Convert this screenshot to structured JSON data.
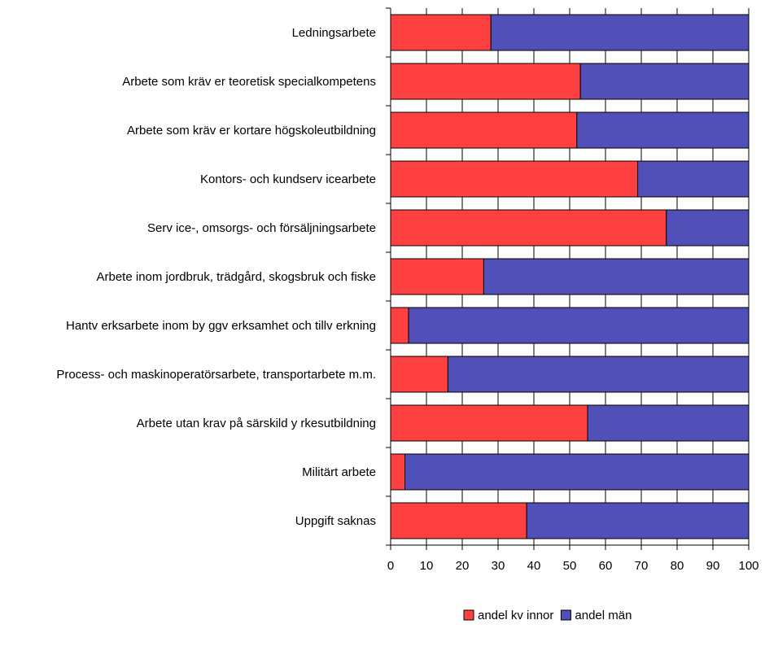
{
  "chart_data": {
    "type": "bar",
    "orientation": "horizontal",
    "stacked": true,
    "categories": [
      "Ledningsarbete",
      "Arbete som kräv er teoretisk specialkompetens",
      "Arbete som kräv er kortare högskoleutbildning",
      "Kontors- och kundserv icearbete",
      "Serv ice-, omsorgs- och försäljningsarbete",
      "Arbete inom jordbruk, trädgård, skogsbruk och fiske",
      "Hantv erksarbete inom by ggv erksamhet och tillv erkning",
      "Process- och maskinoperatörsarbete, transportarbete m.m.",
      "Arbete utan krav på särskild y rkesutbildning",
      "Militärt arbete",
      "Uppgift saknas"
    ],
    "series": [
      {
        "name": "andel kv innor",
        "color": "#ff4040",
        "values": [
          28,
          53,
          52,
          69,
          77,
          26,
          5,
          16,
          55,
          4,
          38
        ]
      },
      {
        "name": "andel män",
        "color": "#5050b8",
        "values": [
          72,
          47,
          48,
          31,
          23,
          74,
          95,
          84,
          45,
          96,
          62
        ]
      }
    ],
    "xlim": [
      0,
      100
    ],
    "xticks": [
      "0",
      "10",
      "20",
      "30",
      "40",
      "50",
      "60",
      "70",
      "80",
      "90",
      "100"
    ],
    "grid": true,
    "legend_position": "bottom-right",
    "title": "",
    "xlabel": "",
    "ylabel": ""
  }
}
